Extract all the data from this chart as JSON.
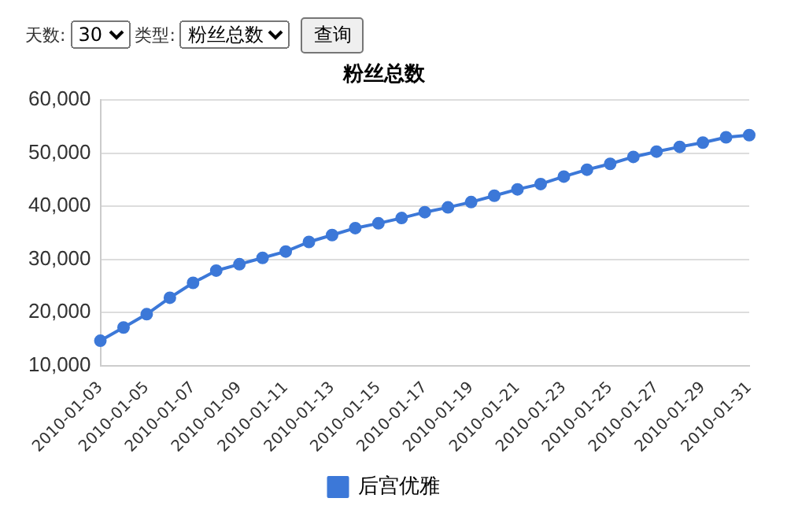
{
  "chart_data": {
    "type": "line",
    "title": "粉丝总数",
    "annotations": [
      "天数:",
      "30",
      "类型:",
      "粉丝总数",
      "查询"
    ],
    "categories": [
      "2010-01-03",
      null,
      "2010-01-05",
      null,
      "2010-01-07",
      null,
      "2010-01-09",
      null,
      "2010-01-11",
      null,
      "2010-01-13",
      null,
      "2010-01-15",
      null,
      "2010-01-17",
      null,
      "2010-01-19",
      null,
      "2010-01-21",
      null,
      "2010-01-23",
      null,
      "2010-01-25",
      null,
      "2010-01-27",
      null,
      "2010-01-29",
      null,
      "2010-01-31"
    ],
    "series": [
      {
        "name": "后宫优雅",
        "color": "#3c78d8",
        "values": [
          14700,
          17200,
          19700,
          22800,
          25600,
          27900,
          29100,
          30300,
          31500,
          33300,
          34600,
          35900,
          36800,
          37800,
          38900,
          39800,
          40800,
          42000,
          43200,
          44200,
          45600,
          46900,
          48000,
          49300,
          50300,
          51200,
          52000,
          53000,
          53400
        ]
      }
    ],
    "ylim": [
      10000,
      60000
    ],
    "yticks": [
      {
        "value": 10000,
        "label": "10,000"
      },
      {
        "value": 20000,
        "label": "20,000"
      },
      {
        "value": 30000,
        "label": "30,000"
      },
      {
        "value": 40000,
        "label": "40,000"
      },
      {
        "value": 50000,
        "label": "50,000"
      },
      {
        "value": 60000,
        "label": "60,000"
      }
    ],
    "grid": "y",
    "legend": "bottom",
    "marker": "circle",
    "line_style": "solid"
  }
}
